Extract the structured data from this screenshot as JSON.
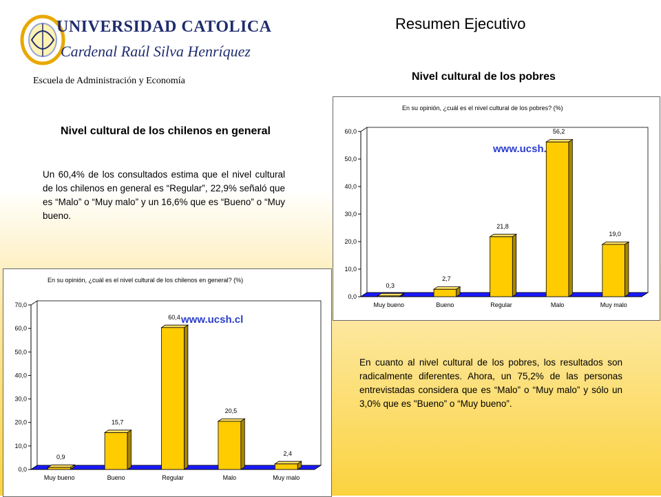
{
  "header": {
    "logo_line1": "UNIVERSIDAD CATOLICA",
    "logo_line2": "Cardenal Raúl Silva Henríquez",
    "school": "Escuela de Administración y Economía",
    "page_title": "Resumen Ejecutivo"
  },
  "left": {
    "heading": "Nivel cultural de los chilenos en general",
    "text": "Un 60,4% de los consultados estima que el nivel cultural de los chilenos en general es “Regular”, 22,9% señaló que es “Malo” o “Muy malo” y un 16,6% que es “Bueno” o “Muy bueno."
  },
  "right": {
    "heading": "Nivel cultural de los pobres",
    "text": "En cuanto al nivel cultural de los pobres, los resultados son radicalmente diferentes. Ahora, un 75,2% de las personas entrevistadas considera que es “Malo”  o “Muy malo” y sólo un 3,0% que es \"Bueno” o “Muy bueno”."
  },
  "colors": {
    "bar": "#ffcc00",
    "floor": "#1a1aff",
    "text_blue": "#2a3dcc",
    "logo_blue": "#1f2d6e"
  },
  "chart_data": [
    {
      "type": "bar",
      "title": "En su opinión, ¿cuál es el nivel cultural de los chilenos en general? (%)",
      "categories": [
        "Muy bueno",
        "Bueno",
        "Regular",
        "Malo",
        "Muy malo"
      ],
      "values": [
        0.9,
        15.7,
        60.4,
        20.5,
        2.4
      ],
      "value_labels": [
        "0,9",
        "15,7",
        "60,4",
        "20,5",
        "2,4"
      ],
      "yticks": [
        "0,0",
        "10,0",
        "20,0",
        "30,0",
        "40,0",
        "50,0",
        "60,0",
        "70,0"
      ],
      "ylim": [
        0,
        70
      ],
      "watermark": "www.ucsh.cl",
      "grid": false
    },
    {
      "type": "bar",
      "title": "En su opinión, ¿cuál es el nivel cultural de los pobres? (%)",
      "categories": [
        "Muy bueno",
        "Bueno",
        "Regular",
        "Malo",
        "Muy malo"
      ],
      "values": [
        0.3,
        2.7,
        21.8,
        56.2,
        19.0
      ],
      "value_labels": [
        "0,3",
        "2,7",
        "21,8",
        "56,2",
        "19,0"
      ],
      "yticks": [
        "0,0",
        "10,0",
        "20,0",
        "30,0",
        "40,0",
        "50,0",
        "60,0"
      ],
      "ylim": [
        0,
        60
      ],
      "watermark": "www.ucsh.cl",
      "grid": false
    }
  ]
}
